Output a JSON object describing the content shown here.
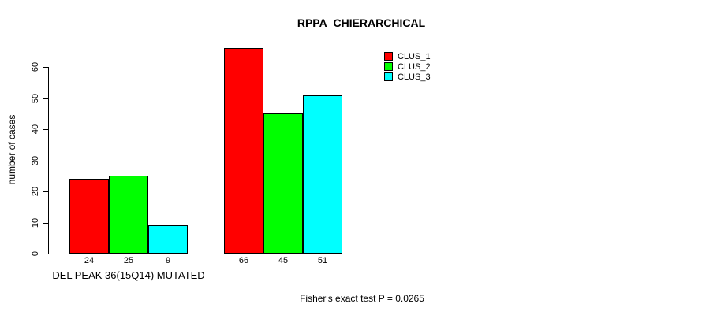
{
  "chart_data": {
    "type": "bar",
    "title": "RPPA_CHIERARCHICAL",
    "ylabel": "number of cases",
    "ylim": [
      0,
      66
    ],
    "yticks": [
      0,
      10,
      20,
      30,
      40,
      50,
      60
    ],
    "grid": false,
    "legend_position": "top-right",
    "categories": [
      "DEL PEAK 36(15Q14) MUTATED",
      ""
    ],
    "series": [
      {
        "name": "CLUS_1",
        "color": "#FF0000",
        "values": [
          24,
          66
        ]
      },
      {
        "name": "CLUS_2",
        "color": "#00FF00",
        "values": [
          25,
          45
        ]
      },
      {
        "name": "CLUS_3",
        "color": "#00FFFF",
        "values": [
          9,
          51
        ]
      }
    ],
    "annotation": "Fisher's exact test P = 0.0265"
  }
}
